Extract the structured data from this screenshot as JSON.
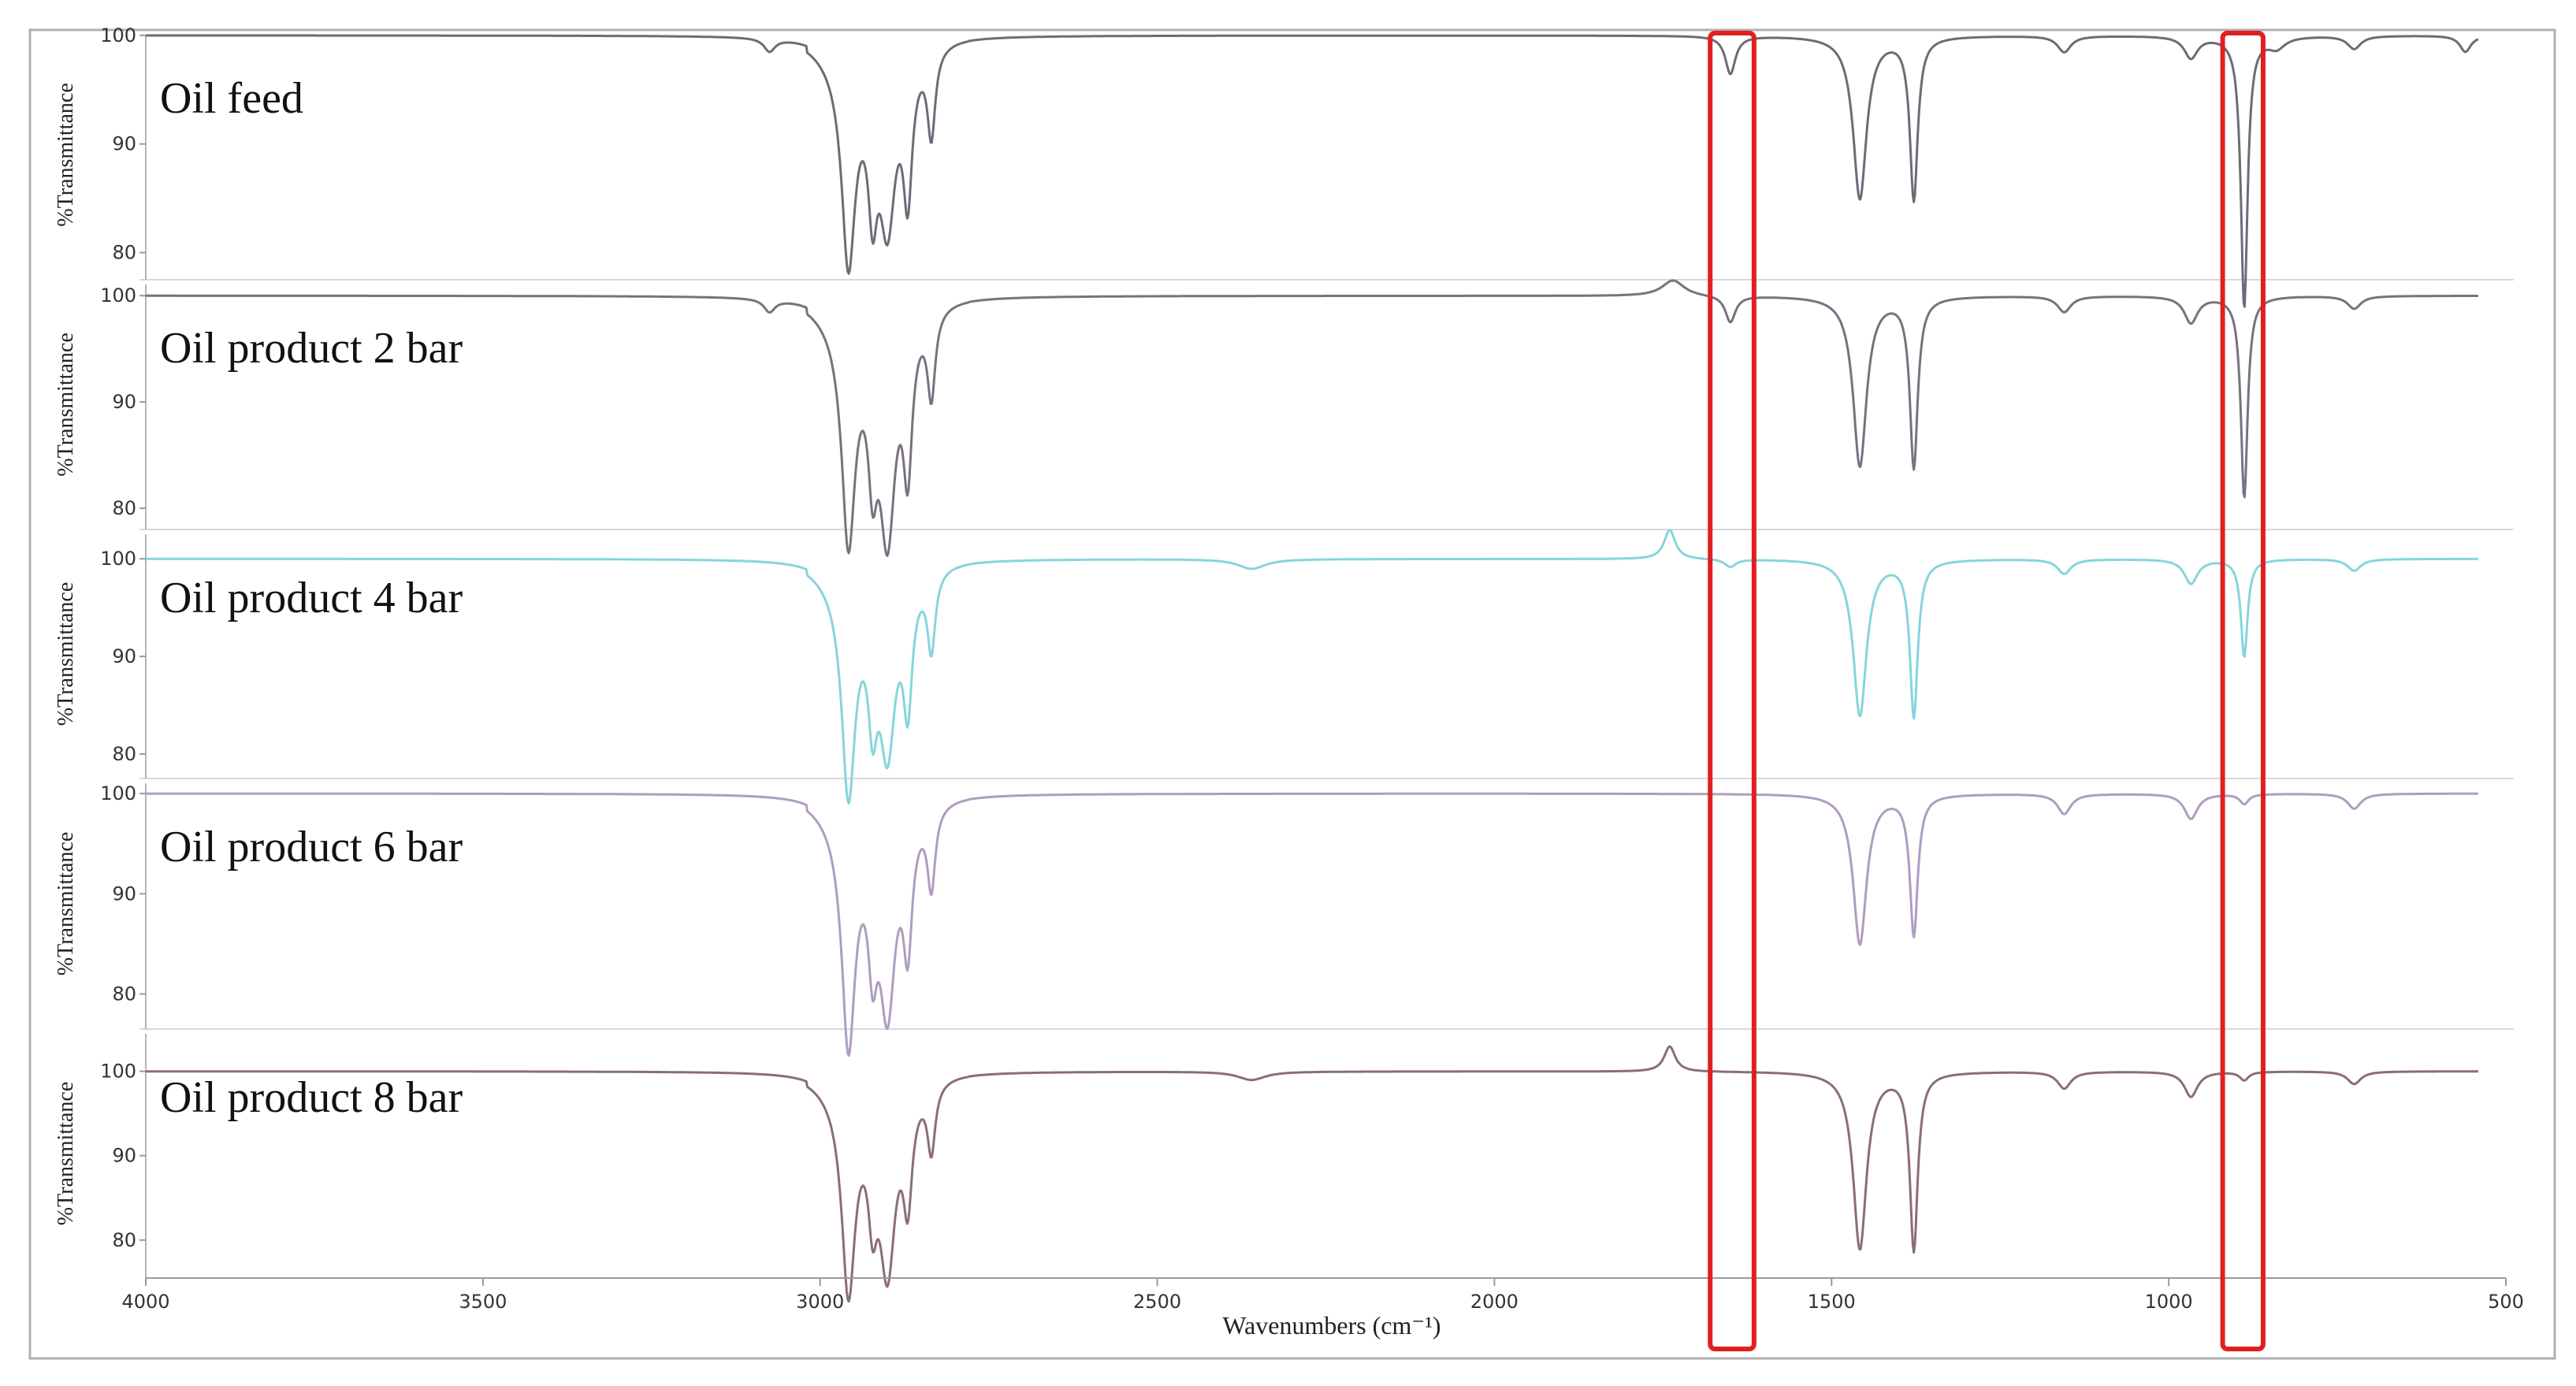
{
  "chart_data": {
    "type": "line",
    "xlabel": "Wavenumbers (cm⁻¹)",
    "xlim": [
      4000,
      500
    ],
    "x_ticks": [
      "4000",
      "3500",
      "3000",
      "2500",
      "2000",
      "1500",
      "1000",
      "500"
    ],
    "y_ticks": [
      "100",
      "90",
      "80"
    ],
    "ylabel": "%Transmittance",
    "highlight_ranges": [
      [
        1680,
        1615
      ],
      [
        920,
        860
      ]
    ],
    "highlight_color": "#e02020",
    "panels": [
      {
        "title": "Oil feed",
        "color": "#6e6a78",
        "ylim": [
          77.5,
          100.5
        ],
        "features": [
          {
            "center": 3075,
            "depth": 1.2,
            "width": 10
          },
          {
            "center": 2958,
            "depth": 18,
            "width": 12
          },
          {
            "center": 2922,
            "depth": 10,
            "width": 8
          },
          {
            "center": 2900,
            "depth": 14,
            "width": 14
          },
          {
            "center": 2870,
            "depth": 12,
            "width": 8
          },
          {
            "center": 2835,
            "depth": 8,
            "width": 7
          },
          {
            "center": 1650,
            "depth": 3.5,
            "width": 9
          },
          {
            "center": 1458,
            "depth": 15,
            "width": 12
          },
          {
            "center": 1378,
            "depth": 15,
            "width": 7
          },
          {
            "center": 1155,
            "depth": 1.5,
            "width": 12
          },
          {
            "center": 967,
            "depth": 2,
            "width": 12
          },
          {
            "center": 888,
            "depth": 25,
            "width": 6
          },
          {
            "center": 840,
            "depth": 1,
            "width": 15
          },
          {
            "center": 725,
            "depth": 1.2,
            "width": 12
          },
          {
            "center": 560,
            "depth": 1.5,
            "width": 10
          }
        ]
      },
      {
        "title": "Oil product 2 bar",
        "color": "#7a7080",
        "ylim": [
          78.0,
          101.5
        ],
        "features": [
          {
            "center": 3075,
            "depth": 1.2,
            "width": 10
          },
          {
            "center": 2958,
            "depth": 20,
            "width": 12
          },
          {
            "center": 2922,
            "depth": 10,
            "width": 8
          },
          {
            "center": 2900,
            "depth": 19,
            "width": 14
          },
          {
            "center": 2870,
            "depth": 13,
            "width": 8
          },
          {
            "center": 2835,
            "depth": 8,
            "width": 7
          },
          {
            "center": 1735,
            "depth": -1.5,
            "width": 20
          },
          {
            "center": 1650,
            "depth": 2.5,
            "width": 9
          },
          {
            "center": 1458,
            "depth": 16,
            "width": 12
          },
          {
            "center": 1378,
            "depth": 16,
            "width": 7
          },
          {
            "center": 1155,
            "depth": 1.5,
            "width": 12
          },
          {
            "center": 967,
            "depth": 2.5,
            "width": 12
          },
          {
            "center": 888,
            "depth": 19,
            "width": 6
          },
          {
            "center": 725,
            "depth": 1.2,
            "width": 12
          }
        ]
      },
      {
        "title": "Oil product 4 bar",
        "color": "#86d5dc",
        "ylim": [
          77.5,
          103.0
        ],
        "features": [
          {
            "center": 2958,
            "depth": 21,
            "width": 12
          },
          {
            "center": 2922,
            "depth": 10,
            "width": 8
          },
          {
            "center": 2900,
            "depth": 16,
            "width": 14
          },
          {
            "center": 2870,
            "depth": 12,
            "width": 8
          },
          {
            "center": 2835,
            "depth": 8,
            "width": 7
          },
          {
            "center": 2360,
            "depth": 1,
            "width": 25
          },
          {
            "center": 1740,
            "depth": -3,
            "width": 10
          },
          {
            "center": 1650,
            "depth": 0.8,
            "width": 10
          },
          {
            "center": 1458,
            "depth": 16,
            "width": 12
          },
          {
            "center": 1378,
            "depth": 16,
            "width": 7
          },
          {
            "center": 1155,
            "depth": 1.5,
            "width": 12
          },
          {
            "center": 967,
            "depth": 2.5,
            "width": 12
          },
          {
            "center": 888,
            "depth": 10,
            "width": 6
          },
          {
            "center": 725,
            "depth": 1.2,
            "width": 12
          }
        ]
      },
      {
        "title": "Oil product 6 bar",
        "color": "#b09cc0",
        "ylim": [
          76.5,
          101.5
        ],
        "features": [
          {
            "center": 2958,
            "depth": 22,
            "width": 12
          },
          {
            "center": 2922,
            "depth": 10,
            "width": 8
          },
          {
            "center": 2900,
            "depth": 18,
            "width": 14
          },
          {
            "center": 2870,
            "depth": 12,
            "width": 8
          },
          {
            "center": 2835,
            "depth": 8,
            "width": 7
          },
          {
            "center": 1458,
            "depth": 15,
            "width": 12
          },
          {
            "center": 1378,
            "depth": 14,
            "width": 7
          },
          {
            "center": 1155,
            "depth": 2,
            "width": 12
          },
          {
            "center": 967,
            "depth": 2.5,
            "width": 12
          },
          {
            "center": 888,
            "depth": 1,
            "width": 8
          },
          {
            "center": 725,
            "depth": 1.5,
            "width": 12
          }
        ]
      },
      {
        "title": "Oil product 8 bar",
        "color": "#8b6e72",
        "ylim": [
          75.5,
          105.0
        ],
        "features": [
          {
            "center": 2958,
            "depth": 23,
            "width": 12
          },
          {
            "center": 2922,
            "depth": 10,
            "width": 8
          },
          {
            "center": 2900,
            "depth": 20,
            "width": 14
          },
          {
            "center": 2870,
            "depth": 12,
            "width": 8
          },
          {
            "center": 2835,
            "depth": 8,
            "width": 7
          },
          {
            "center": 2360,
            "depth": 1,
            "width": 25
          },
          {
            "center": 1740,
            "depth": -3,
            "width": 10
          },
          {
            "center": 1458,
            "depth": 21,
            "width": 12
          },
          {
            "center": 1378,
            "depth": 21,
            "width": 7
          },
          {
            "center": 1155,
            "depth": 2,
            "width": 12
          },
          {
            "center": 967,
            "depth": 3,
            "width": 12
          },
          {
            "center": 888,
            "depth": 1,
            "width": 8
          },
          {
            "center": 725,
            "depth": 1.5,
            "width": 12
          }
        ]
      }
    ]
  }
}
